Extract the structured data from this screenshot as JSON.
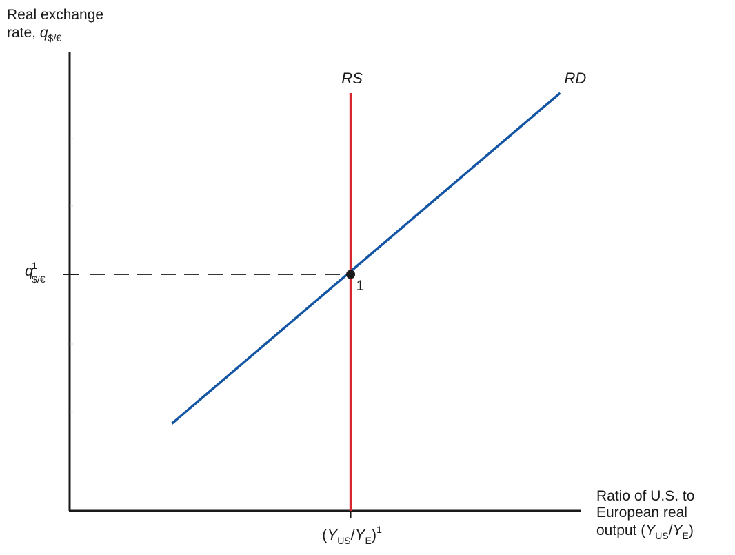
{
  "chart_data": {
    "type": "line",
    "title": "",
    "ylabel": {
      "line1": "Real exchange",
      "line2_prefix": "rate, ",
      "symbol": "q",
      "subscript": "$/€"
    },
    "xlabel": {
      "line1": "Ratio of U.S. to",
      "line2": "European real",
      "line3_prefix": "output (",
      "symbol_num": "Y",
      "sub_num": "US",
      "slash": "/",
      "symbol_den": "Y",
      "sub_den": "E",
      "close": ")"
    },
    "xlim": [
      0,
      10
    ],
    "ylim": [
      0,
      10
    ],
    "grid": false,
    "legend": "none",
    "series": [
      {
        "name": "RS",
        "color": "#d7282f",
        "x": [
          5.5,
          5.5
        ],
        "y": [
          0,
          9.1
        ]
      },
      {
        "name": "RD",
        "color": "#1355a4",
        "x": [
          2.0,
          9.6
        ],
        "y": [
          1.9,
          9.1
        ]
      }
    ],
    "equilibrium": {
      "label": "1",
      "x": 5.5,
      "y": 5.15
    },
    "ytick": {
      "symbol": "q",
      "superscript": "1",
      "subscript": "$/€",
      "value": 5.15
    },
    "xtick": {
      "open": "(",
      "symbol_num": "Y",
      "sub_num": "US",
      "slash": "/",
      "symbol_den": "Y",
      "sub_den": "E",
      "close": ")",
      "superscript": "1",
      "value": 5.5
    },
    "axis_color": "#1a1a1a"
  }
}
